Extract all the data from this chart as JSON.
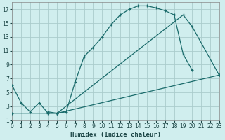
{
  "xlabel": "Humidex (Indice chaleur)",
  "bg_color": "#d0eeee",
  "grid_color": "#aacccc",
  "line_color": "#1a6b6b",
  "curve1_x": [
    0,
    1,
    2,
    3,
    4,
    5,
    6,
    7,
    8,
    9,
    10,
    11,
    12,
    13,
    14,
    15,
    16,
    17,
    18,
    19,
    20,
    21
  ],
  "curve1_y": [
    6.0,
    3.5,
    2.2,
    3.5,
    2.0,
    2.0,
    2.2,
    6.5,
    10.2,
    11.5,
    13.0,
    14.8,
    16.2,
    17.0,
    17.5,
    17.5,
    17.2,
    16.8,
    16.2,
    10.5,
    8.2,
    null
  ],
  "curve2_x": [
    4,
    5,
    19,
    20,
    23
  ],
  "curve2_y": [
    2.2,
    2.0,
    16.2,
    14.5,
    7.5
  ],
  "curve3_x": [
    0,
    5,
    23
  ],
  "curve3_y": [
    2.0,
    2.0,
    7.5
  ],
  "xlim": [
    0,
    23
  ],
  "ylim": [
    1,
    18
  ],
  "xticks": [
    0,
    1,
    2,
    3,
    4,
    5,
    6,
    7,
    8,
    9,
    10,
    11,
    12,
    13,
    14,
    15,
    16,
    17,
    18,
    19,
    20,
    21,
    22,
    23
  ],
  "yticks": [
    1,
    3,
    5,
    7,
    9,
    11,
    13,
    15,
    17
  ],
  "xlabel_fontsize": 6.5,
  "tick_fontsize": 5.5
}
